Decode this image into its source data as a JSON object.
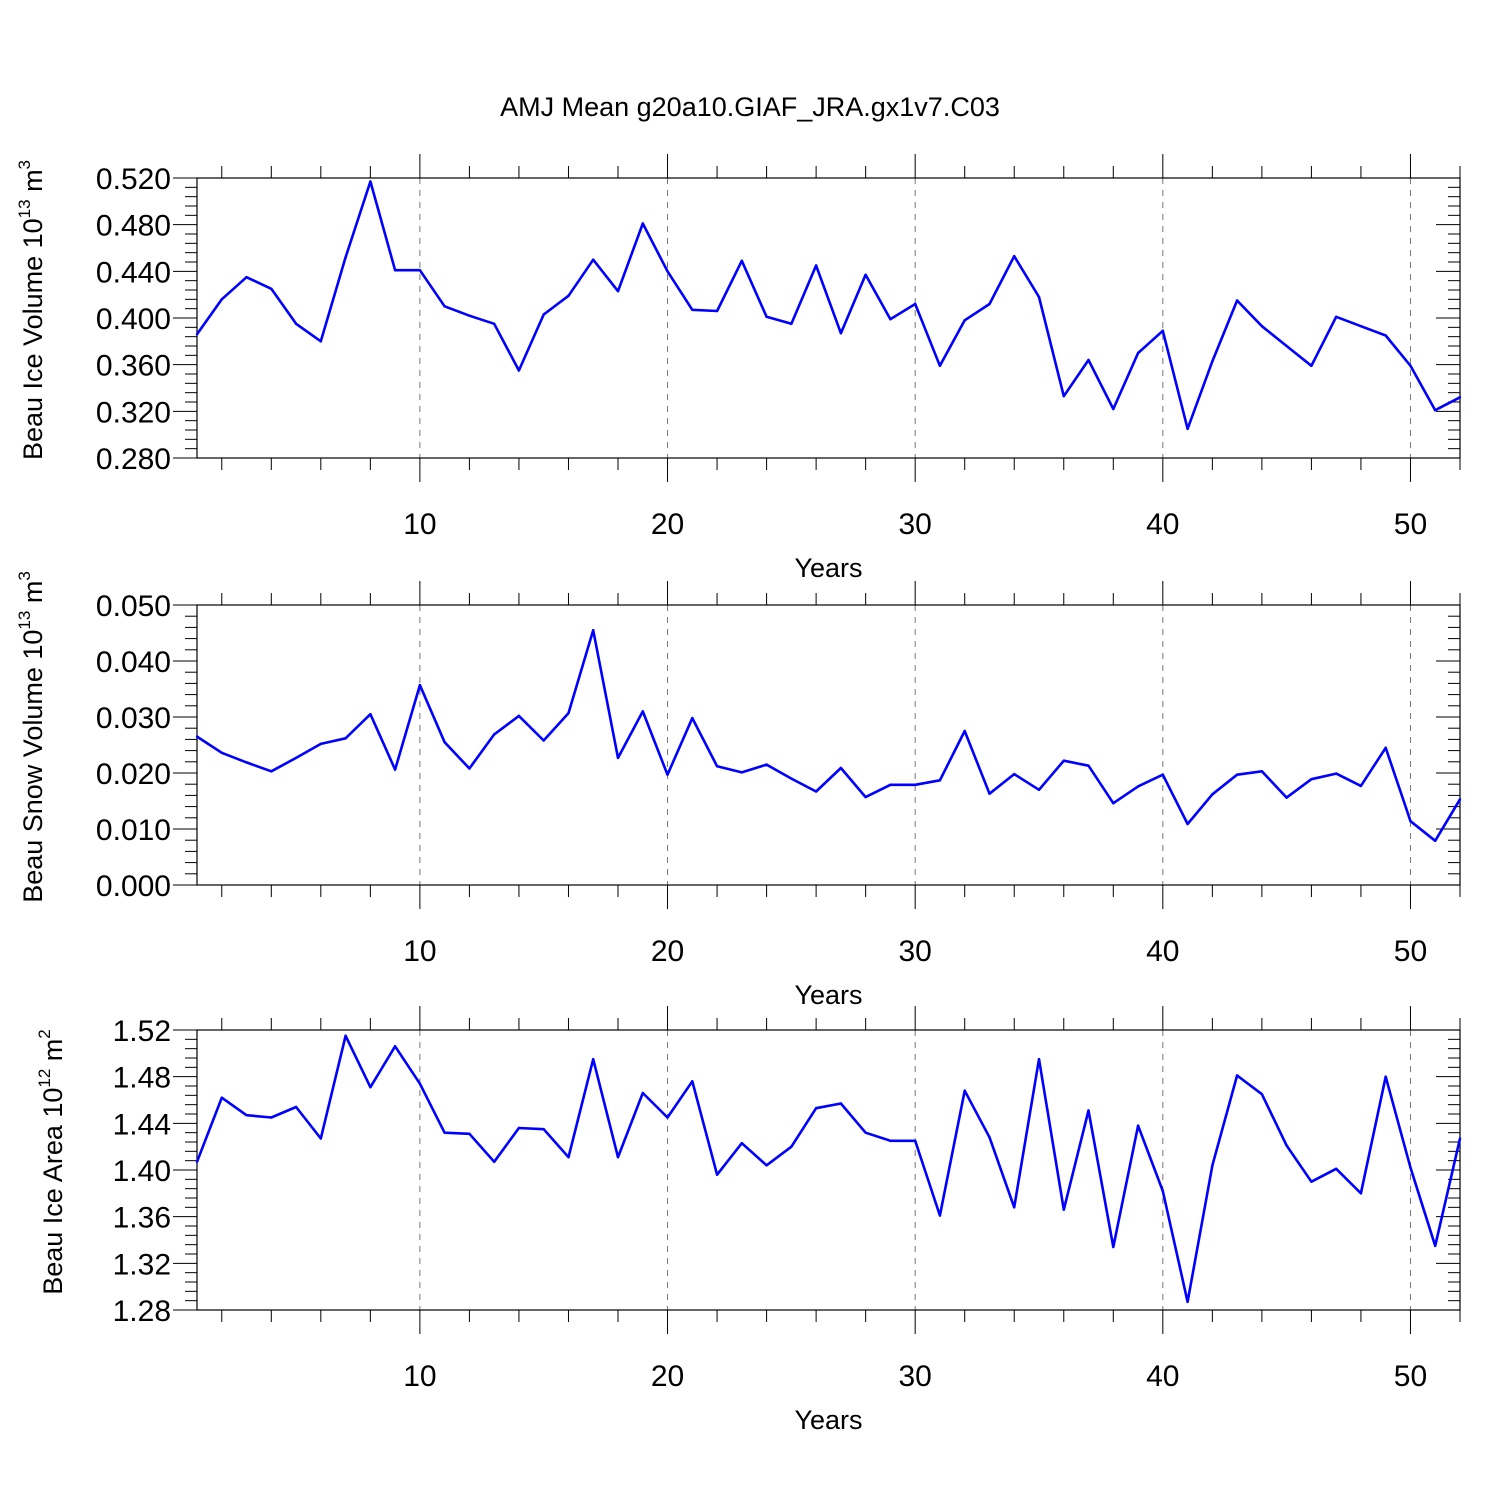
{
  "figure_title": "AMJ Mean g20a10.GIAF_JRA.gx1v7.C03",
  "chart_data": [
    {
      "type": "line",
      "title": "AMJ Mean g20a10.GIAF_JRA.gx1v7.C03",
      "xlabel": "Years",
      "ylabel_main": "Beau Ice Volume 10",
      "ylabel_exp": "13",
      "ylabel_unit": " m",
      "ylabel_unit_exp": "3",
      "xlim": [
        1,
        52
      ],
      "ylim": [
        0.28,
        0.52
      ],
      "yticks": [
        0.28,
        0.32,
        0.36,
        0.4,
        0.44,
        0.48,
        0.52
      ],
      "ytick_labels": [
        "0.280",
        "0.320",
        "0.360",
        "0.400",
        "0.440",
        "0.480",
        "0.520"
      ],
      "xticks": [
        10,
        20,
        30,
        40,
        50
      ],
      "xtick_labels": [
        "10",
        "20",
        "30",
        "40",
        "50"
      ],
      "grid": "vertical dashed at major x ticks",
      "series": [
        {
          "name": "Beau Ice Volume",
          "color": "#0000ff",
          "x": [
            1,
            2,
            3,
            4,
            5,
            6,
            7,
            8,
            9,
            10,
            11,
            12,
            13,
            14,
            15,
            16,
            17,
            18,
            19,
            20,
            21,
            22,
            23,
            24,
            25,
            26,
            27,
            28,
            29,
            30,
            31,
            32,
            33,
            34,
            35,
            36,
            37,
            38,
            39,
            40,
            41,
            42,
            43,
            44,
            45,
            46,
            47,
            48,
            49,
            50,
            51,
            52
          ],
          "values": [
            0.386,
            0.416,
            0.435,
            0.425,
            0.395,
            0.38,
            0.452,
            0.517,
            0.441,
            0.441,
            0.41,
            0.402,
            0.395,
            0.355,
            0.403,
            0.419,
            0.45,
            0.423,
            0.481,
            0.44,
            0.407,
            0.406,
            0.449,
            0.401,
            0.395,
            0.445,
            0.387,
            0.437,
            0.399,
            0.412,
            0.359,
            0.398,
            0.412,
            0.453,
            0.418,
            0.333,
            0.364,
            0.322,
            0.37,
            0.389,
            0.305,
            0.363,
            0.415,
            0.393,
            0.376,
            0.359,
            0.401,
            0.393,
            0.385,
            0.359,
            0.321,
            0.332
          ]
        }
      ]
    },
    {
      "type": "line",
      "xlabel": "Years",
      "ylabel_main": "Beau Snow Volume 10",
      "ylabel_exp": "13",
      "ylabel_unit": " m",
      "ylabel_unit_exp": "3",
      "xlim": [
        1,
        52
      ],
      "ylim": [
        0.0,
        0.05
      ],
      "yticks": [
        0.0,
        0.01,
        0.02,
        0.03,
        0.04,
        0.05
      ],
      "ytick_labels": [
        "0.000",
        "0.010",
        "0.020",
        "0.030",
        "0.040",
        "0.050"
      ],
      "xticks": [
        10,
        20,
        30,
        40,
        50
      ],
      "xtick_labels": [
        "10",
        "20",
        "30",
        "40",
        "50"
      ],
      "grid": "vertical dashed at major x ticks",
      "series": [
        {
          "name": "Beau Snow Volume",
          "color": "#0000ff",
          "x": [
            1,
            2,
            3,
            4,
            5,
            6,
            7,
            8,
            9,
            10,
            11,
            12,
            13,
            14,
            15,
            16,
            17,
            18,
            19,
            20,
            21,
            22,
            23,
            24,
            25,
            26,
            27,
            28,
            29,
            30,
            31,
            32,
            33,
            34,
            35,
            36,
            37,
            38,
            39,
            40,
            41,
            42,
            43,
            44,
            45,
            46,
            47,
            48,
            49,
            50,
            51,
            52
          ],
          "values": [
            0.0265,
            0.0236,
            0.0219,
            0.0203,
            0.0227,
            0.0252,
            0.0262,
            0.0305,
            0.0206,
            0.0357,
            0.0255,
            0.0208,
            0.0269,
            0.0302,
            0.0258,
            0.0307,
            0.0455,
            0.0227,
            0.031,
            0.0197,
            0.0298,
            0.0212,
            0.0201,
            0.0215,
            0.019,
            0.0167,
            0.0209,
            0.0157,
            0.0179,
            0.0179,
            0.0187,
            0.0275,
            0.0163,
            0.0198,
            0.017,
            0.0222,
            0.0213,
            0.0146,
            0.0176,
            0.0197,
            0.0109,
            0.0162,
            0.0197,
            0.0203,
            0.0156,
            0.0189,
            0.0199,
            0.0177,
            0.0245,
            0.0114,
            0.0079,
            0.0153
          ]
        }
      ]
    },
    {
      "type": "line",
      "xlabel": "Years",
      "ylabel_main": "Beau Ice Area 10",
      "ylabel_exp": "12",
      "ylabel_unit": " m",
      "ylabel_unit_exp": "2",
      "xlim": [
        1,
        52
      ],
      "ylim": [
        1.28,
        1.52
      ],
      "yticks": [
        1.28,
        1.32,
        1.36,
        1.4,
        1.44,
        1.48,
        1.52
      ],
      "ytick_labels": [
        "1.28",
        "1.32",
        "1.36",
        "1.40",
        "1.44",
        "1.48",
        "1.52"
      ],
      "xticks": [
        10,
        20,
        30,
        40,
        50
      ],
      "xtick_labels": [
        "10",
        "20",
        "30",
        "40",
        "50"
      ],
      "grid": "vertical dashed at major x ticks",
      "series": [
        {
          "name": "Beau Ice Area",
          "color": "#0000ff",
          "x": [
            1,
            2,
            3,
            4,
            5,
            6,
            7,
            8,
            9,
            10,
            11,
            12,
            13,
            14,
            15,
            16,
            17,
            18,
            19,
            20,
            21,
            22,
            23,
            24,
            25,
            26,
            27,
            28,
            29,
            30,
            31,
            32,
            33,
            34,
            35,
            36,
            37,
            38,
            39,
            40,
            41,
            42,
            43,
            44,
            45,
            46,
            47,
            48,
            49,
            50,
            51,
            52
          ],
          "values": [
            1.407,
            1.462,
            1.447,
            1.445,
            1.454,
            1.427,
            1.515,
            1.471,
            1.506,
            1.474,
            1.432,
            1.431,
            1.407,
            1.436,
            1.435,
            1.411,
            1.495,
            1.411,
            1.466,
            1.445,
            1.476,
            1.396,
            1.423,
            1.404,
            1.42,
            1.453,
            1.457,
            1.432,
            1.425,
            1.425,
            1.361,
            1.468,
            1.428,
            1.368,
            1.495,
            1.366,
            1.451,
            1.334,
            1.438,
            1.382,
            1.287,
            1.404,
            1.481,
            1.465,
            1.421,
            1.39,
            1.401,
            1.38,
            1.48,
            1.402,
            1.335,
            1.427
          ]
        }
      ]
    }
  ]
}
